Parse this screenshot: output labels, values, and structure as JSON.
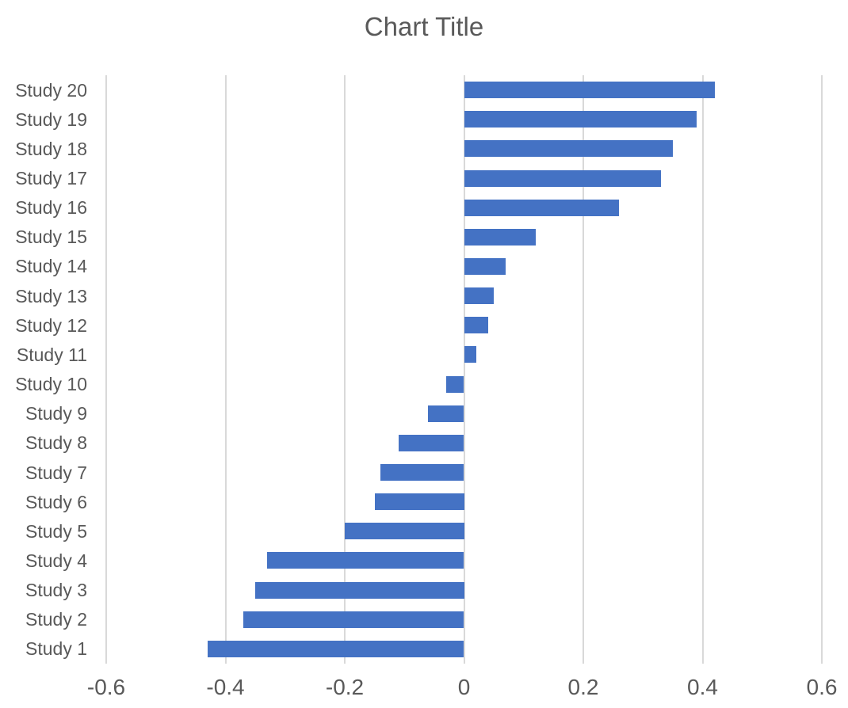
{
  "chart_data": {
    "type": "bar",
    "orientation": "horizontal",
    "title": "Chart Title",
    "categories": [
      "Study 1",
      "Study 2",
      "Study 3",
      "Study 4",
      "Study 5",
      "Study 6",
      "Study 7",
      "Study 8",
      "Study 9",
      "Study 10",
      "Study 11",
      "Study 12",
      "Study 13",
      "Study 14",
      "Study 15",
      "Study 16",
      "Study 17",
      "Study 18",
      "Study 19",
      "Study 20"
    ],
    "values": [
      -0.43,
      -0.37,
      -0.35,
      -0.33,
      -0.2,
      -0.15,
      -0.14,
      -0.11,
      -0.06,
      -0.03,
      0.02,
      0.04,
      0.05,
      0.07,
      0.12,
      0.26,
      0.33,
      0.35,
      0.39,
      0.42
    ],
    "xlabel": "",
    "ylabel": "",
    "xlim": [
      -0.6,
      0.6
    ],
    "x_ticks": [
      -0.6,
      -0.4,
      -0.2,
      0,
      0.2,
      0.4,
      0.6
    ],
    "x_tick_labels": [
      "-0.6",
      "-0.4",
      "-0.2",
      "0",
      "0.2",
      "0.4",
      "0.6"
    ],
    "grid": true,
    "legend_position": "none",
    "first_category_at_bottom": true,
    "colors": {
      "bar": "#4472C4",
      "gridline": "#D9D9D9",
      "text": "#595959",
      "background": "#FFFFFF"
    }
  }
}
